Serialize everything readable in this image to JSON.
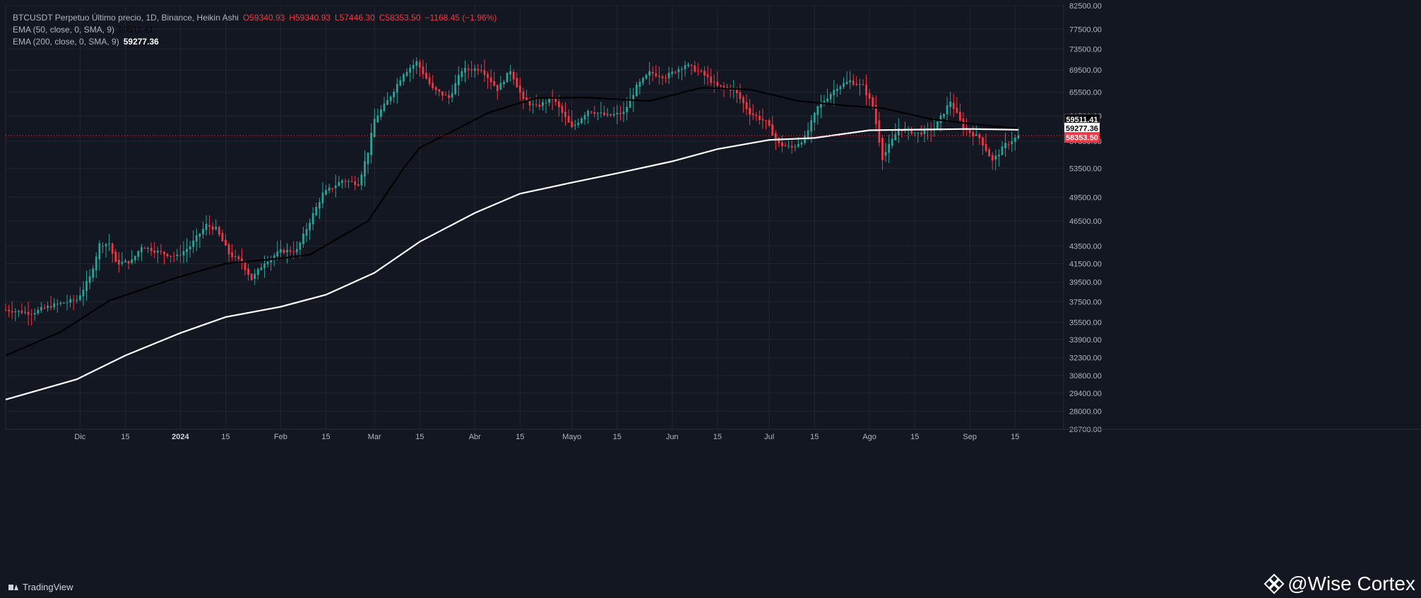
{
  "legend": {
    "title": "BTCUSDT Perpetuo Último precio, 1D, Binance, Heikin Ashi",
    "open": "O59340.93",
    "high": "H59340.93",
    "low": "L57446.30",
    "close": "C58353.50",
    "change": "−1168.45 (−1.96%)",
    "ema50_name": "EMA (50, close, 0, SMA, 9)",
    "ema50_value": "59511.41",
    "ema200_name": "EMA (200, close, 0, SMA, 9)",
    "ema200_value": "59277.36"
  },
  "footer": {
    "brand": "TradingView"
  },
  "watermark": {
    "text": "@Wise Cortex"
  },
  "colors": {
    "background": "#131722",
    "grid": "#232632",
    "up": "#26a69a",
    "down": "#f23645",
    "ema50": "#000000",
    "ema200": "#ffffff"
  },
  "chart_data": {
    "type": "candlestick",
    "symbol": "BTCUSDT",
    "interval": "1D",
    "style": "Heikin Ashi",
    "x_range": [
      "2023-11-08",
      "2024-09-30"
    ],
    "ylim": [
      26700,
      82500
    ],
    "y_scale": "log",
    "y_ticks": [
      26700,
      28000,
      29400,
      30800,
      32300,
      33900,
      35500,
      37500,
      39500,
      41500,
      43500,
      46500,
      49500,
      53500,
      57500,
      61500,
      65500,
      69500,
      73500,
      77500,
      82500
    ],
    "x_ticks": [
      {
        "label": "Dic",
        "date": "2023-12-01"
      },
      {
        "label": "15",
        "date": "2023-12-15"
      },
      {
        "label": "2024",
        "date": "2024-01-01"
      },
      {
        "label": "15",
        "date": "2024-01-15"
      },
      {
        "label": "Feb",
        "date": "2024-02-01"
      },
      {
        "label": "15",
        "date": "2024-02-15"
      },
      {
        "label": "Mar",
        "date": "2024-03-01"
      },
      {
        "label": "15",
        "date": "2024-03-15"
      },
      {
        "label": "Abr",
        "date": "2024-04-01"
      },
      {
        "label": "15",
        "date": "2024-04-15"
      },
      {
        "label": "Mayo",
        "date": "2024-05-01"
      },
      {
        "label": "15",
        "date": "2024-05-15"
      },
      {
        "label": "Jun",
        "date": "2024-06-01"
      },
      {
        "label": "15",
        "date": "2024-06-15"
      },
      {
        "label": "Jul",
        "date": "2024-07-01"
      },
      {
        "label": "15",
        "date": "2024-07-15"
      },
      {
        "label": "Ago",
        "date": "2024-08-01"
      },
      {
        "label": "15",
        "date": "2024-08-15"
      },
      {
        "label": "Sep",
        "date": "2024-09-01"
      },
      {
        "label": "15",
        "date": "2024-09-15"
      }
    ],
    "price_points": [
      {
        "date": "2023-11-08",
        "close": 36700
      },
      {
        "date": "2023-11-16",
        "close": 36400
      },
      {
        "date": "2023-11-22",
        "close": 37100
      },
      {
        "date": "2023-11-30",
        "close": 37700
      },
      {
        "date": "2023-12-04",
        "close": 40000
      },
      {
        "date": "2023-12-07",
        "close": 43700
      },
      {
        "date": "2023-12-10",
        "close": 43800
      },
      {
        "date": "2023-12-12",
        "close": 41500
      },
      {
        "date": "2023-12-17",
        "close": 41800
      },
      {
        "date": "2023-12-20",
        "close": 43500
      },
      {
        "date": "2023-12-26",
        "close": 42700
      },
      {
        "date": "2023-12-31",
        "close": 42300
      },
      {
        "date": "2024-01-04",
        "close": 43500
      },
      {
        "date": "2024-01-09",
        "close": 46000
      },
      {
        "date": "2024-01-12",
        "close": 45500
      },
      {
        "date": "2024-01-16",
        "close": 42600
      },
      {
        "date": "2024-01-20",
        "close": 41600
      },
      {
        "date": "2024-01-23",
        "close": 39800
      },
      {
        "date": "2024-01-27",
        "close": 41700
      },
      {
        "date": "2024-02-01",
        "close": 42900
      },
      {
        "date": "2024-02-06",
        "close": 43000
      },
      {
        "date": "2024-02-10",
        "close": 46500
      },
      {
        "date": "2024-02-14",
        "close": 50000
      },
      {
        "date": "2024-02-20",
        "close": 51800
      },
      {
        "date": "2024-02-25",
        "close": 51400
      },
      {
        "date": "2024-02-28",
        "close": 56000
      },
      {
        "date": "2024-03-01",
        "close": 61000
      },
      {
        "date": "2024-03-05",
        "close": 64000
      },
      {
        "date": "2024-03-10",
        "close": 69000
      },
      {
        "date": "2024-03-14",
        "close": 71000
      },
      {
        "date": "2024-03-19",
        "close": 66000
      },
      {
        "date": "2024-03-24",
        "close": 64500
      },
      {
        "date": "2024-03-28",
        "close": 69500
      },
      {
        "date": "2024-04-03",
        "close": 69800
      },
      {
        "date": "2024-04-08",
        "close": 66000
      },
      {
        "date": "2024-04-12",
        "close": 69500
      },
      {
        "date": "2024-04-16",
        "close": 64000
      },
      {
        "date": "2024-04-20",
        "close": 63000
      },
      {
        "date": "2024-04-25",
        "close": 64500
      },
      {
        "date": "2024-05-01",
        "close": 59500
      },
      {
        "date": "2024-05-06",
        "close": 62500
      },
      {
        "date": "2024-05-12",
        "close": 61500
      },
      {
        "date": "2024-05-17",
        "close": 62000
      },
      {
        "date": "2024-05-21",
        "close": 66500
      },
      {
        "date": "2024-05-25",
        "close": 69000
      },
      {
        "date": "2024-05-30",
        "close": 68300
      },
      {
        "date": "2024-06-05",
        "close": 70500
      },
      {
        "date": "2024-06-10",
        "close": 69000
      },
      {
        "date": "2024-06-15",
        "close": 66500
      },
      {
        "date": "2024-06-20",
        "close": 66000
      },
      {
        "date": "2024-06-25",
        "close": 62000
      },
      {
        "date": "2024-06-30",
        "close": 60500
      },
      {
        "date": "2024-07-04",
        "close": 57000
      },
      {
        "date": "2024-07-08",
        "close": 56500
      },
      {
        "date": "2024-07-12",
        "close": 58000
      },
      {
        "date": "2024-07-16",
        "close": 63000
      },
      {
        "date": "2024-07-22",
        "close": 66500
      },
      {
        "date": "2024-07-26",
        "close": 67500
      },
      {
        "date": "2024-07-30",
        "close": 66500
      },
      {
        "date": "2024-08-02",
        "close": 63000
      },
      {
        "date": "2024-08-05",
        "close": 55000
      },
      {
        "date": "2024-08-10",
        "close": 59500
      },
      {
        "date": "2024-08-16",
        "close": 58700
      },
      {
        "date": "2024-08-21",
        "close": 59500
      },
      {
        "date": "2024-08-26",
        "close": 64000
      },
      {
        "date": "2024-08-30",
        "close": 59500
      },
      {
        "date": "2024-09-04",
        "close": 58000
      },
      {
        "date": "2024-09-08",
        "close": 54500
      },
      {
        "date": "2024-09-12",
        "close": 57000
      },
      {
        "date": "2024-09-16",
        "close": 58300
      }
    ],
    "series": [
      {
        "name": "EMA (50, close, 0, SMA, 9)",
        "points": [
          {
            "date": "2023-11-08",
            "value": 32500
          },
          {
            "date": "2023-11-25",
            "value": 34600
          },
          {
            "date": "2023-12-10",
            "value": 37600
          },
          {
            "date": "2023-12-31",
            "value": 40000
          },
          {
            "date": "2024-01-15",
            "value": 41500
          },
          {
            "date": "2024-02-01",
            "value": 42100
          },
          {
            "date": "2024-02-10",
            "value": 42500
          },
          {
            "date": "2024-02-28",
            "value": 46500
          },
          {
            "date": "2024-03-10",
            "value": 53500
          },
          {
            "date": "2024-03-15",
            "value": 56500
          },
          {
            "date": "2024-03-25",
            "value": 59000
          },
          {
            "date": "2024-04-05",
            "value": 62000
          },
          {
            "date": "2024-04-20",
            "value": 64500
          },
          {
            "date": "2024-05-05",
            "value": 64600
          },
          {
            "date": "2024-05-25",
            "value": 64000
          },
          {
            "date": "2024-06-10",
            "value": 66300
          },
          {
            "date": "2024-06-25",
            "value": 66000
          },
          {
            "date": "2024-07-10",
            "value": 64000
          },
          {
            "date": "2024-07-25",
            "value": 63200
          },
          {
            "date": "2024-08-05",
            "value": 62800
          },
          {
            "date": "2024-08-20",
            "value": 61000
          },
          {
            "date": "2024-09-05",
            "value": 60000
          },
          {
            "date": "2024-09-16",
            "value": 59511.41
          }
        ]
      },
      {
        "name": "EMA (200, close, 0, SMA, 9)",
        "points": [
          {
            "date": "2023-11-08",
            "value": 28900
          },
          {
            "date": "2023-11-30",
            "value": 30500
          },
          {
            "date": "2023-12-15",
            "value": 32500
          },
          {
            "date": "2024-01-01",
            "value": 34500
          },
          {
            "date": "2024-01-15",
            "value": 36000
          },
          {
            "date": "2024-02-01",
            "value": 37000
          },
          {
            "date": "2024-02-15",
            "value": 38200
          },
          {
            "date": "2024-03-01",
            "value": 40500
          },
          {
            "date": "2024-03-15",
            "value": 44000
          },
          {
            "date": "2024-04-01",
            "value": 47500
          },
          {
            "date": "2024-04-15",
            "value": 50000
          },
          {
            "date": "2024-05-01",
            "value": 51500
          },
          {
            "date": "2024-05-15",
            "value": 52800
          },
          {
            "date": "2024-06-01",
            "value": 54500
          },
          {
            "date": "2024-06-15",
            "value": 56300
          },
          {
            "date": "2024-07-01",
            "value": 57700
          },
          {
            "date": "2024-07-15",
            "value": 58000
          },
          {
            "date": "2024-08-01",
            "value": 59200
          },
          {
            "date": "2024-08-15",
            "value": 59300
          },
          {
            "date": "2024-09-01",
            "value": 59400
          },
          {
            "date": "2024-09-16",
            "value": 59277.36
          }
        ]
      }
    ],
    "last_price": 58353.5,
    "price_labels": [
      {
        "text": "59511.41",
        "value": 59511.41,
        "bg": "#000000",
        "fg": "#ffffff"
      },
      {
        "text": "59277.36",
        "value": 59277.36,
        "bg": "#ffffff",
        "fg": "#000000"
      },
      {
        "text": "58353.50",
        "value": 58353.5,
        "bg": "#f23645",
        "fg": "#ffffff"
      }
    ]
  }
}
